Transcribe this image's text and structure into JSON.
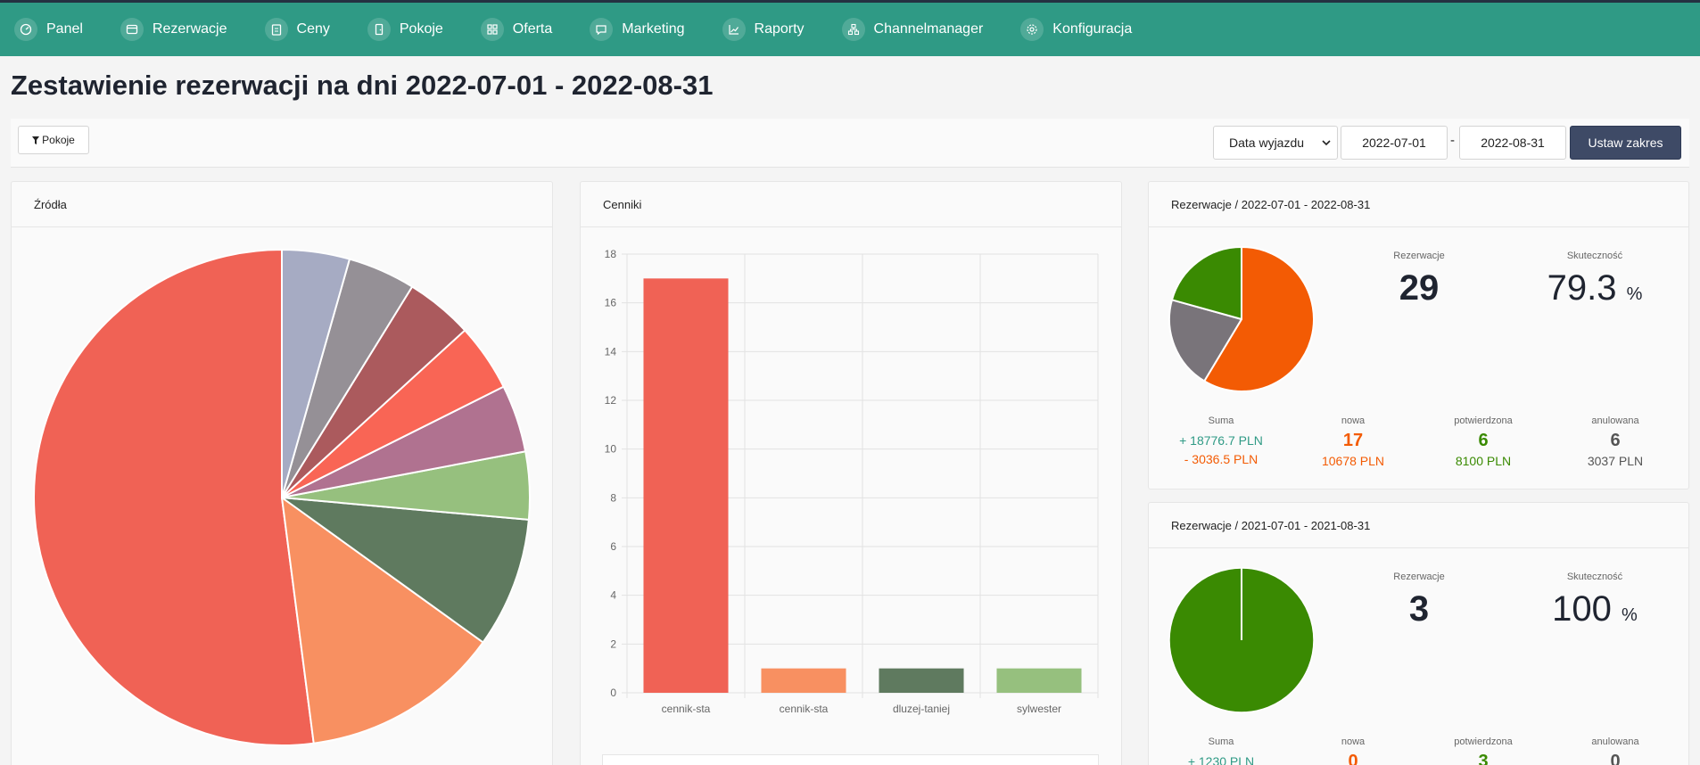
{
  "nav": {
    "items": [
      {
        "label": "Panel",
        "icon": "dashboard-icon"
      },
      {
        "label": "Rezerwacje",
        "icon": "calendar-card-icon"
      },
      {
        "label": "Ceny",
        "icon": "clipboard-icon"
      },
      {
        "label": "Pokoje",
        "icon": "door-icon"
      },
      {
        "label": "Oferta",
        "icon": "grid-icon"
      },
      {
        "label": "Marketing",
        "icon": "message-icon"
      },
      {
        "label": "Raporty",
        "icon": "chart-line-icon"
      },
      {
        "label": "Channelmanager",
        "icon": "network-icon"
      },
      {
        "label": "Konfiguracja",
        "icon": "gear-icon"
      }
    ]
  },
  "page": {
    "title": "Zestawienie rezerwacji na dni 2022-07-01 - 2022-08-31"
  },
  "toolbar": {
    "filter_label": "Pokoje",
    "date_type": "Data wyjazdu",
    "date_from": "2022-07-01",
    "date_separator": "-",
    "date_to": "2022-08-31",
    "apply_label": "Ustaw zakres"
  },
  "colors": {
    "nav_bg": "#2f9a85",
    "nowa": "#f35b04",
    "potwierdzona": "#3a8a02",
    "anulowana": "#555555",
    "suma_plus": "#2f9a85",
    "suma_minus": "#f35b04"
  },
  "sources_card": {
    "title": "Źródła"
  },
  "pricing_card": {
    "title": "Cenniki"
  },
  "res_current": {
    "title": "Rezerwacje / 2022-07-01 - 2022-08-31",
    "count_label": "Rezerwacje",
    "count": "29",
    "eff_label": "Skuteczność",
    "eff_value": "79.3",
    "eff_unit": "%",
    "sum_label": "Suma",
    "sum_plus": "+ 18776.7 PLN",
    "sum_minus": "- 3036.5 PLN",
    "new_label": "nowa",
    "new_count": "17",
    "new_amount": "10678 PLN",
    "confirmed_label": "potwierdzona",
    "confirmed_count": "6",
    "confirmed_amount": "8100 PLN",
    "cancelled_label": "anulowana",
    "cancelled_count": "6",
    "cancelled_amount": "3037 PLN"
  },
  "res_previous": {
    "title": "Rezerwacje / 2021-07-01 - 2021-08-31",
    "count_label": "Rezerwacje",
    "count": "3",
    "eff_label": "Skuteczność",
    "eff_value": "100",
    "eff_unit": "%",
    "sum_label": "Suma",
    "sum_plus": "+ 1230 PLN",
    "new_label": "nowa",
    "new_count": "0",
    "confirmed_label": "potwierdzona",
    "confirmed_count": "3",
    "cancelled_label": "anulowana",
    "cancelled_count": "0"
  },
  "chart_data": [
    {
      "type": "pie",
      "title": "Źródła",
      "values": [
        52,
        13,
        8.5,
        4.4,
        4.4,
        4.4,
        4.4,
        4.4,
        4.4
      ],
      "colors": [
        "#f06255",
        "#f89061",
        "#5f7a5f",
        "#96c07e",
        "#b07290",
        "#f96555",
        "#ab5a5d",
        "#959096",
        "#a6abc3"
      ]
    },
    {
      "type": "bar",
      "title": "Cenniki",
      "categories": [
        "cennik-sta",
        "cennik-sta",
        "dluzej-taniej",
        "sylwester"
      ],
      "values": [
        17,
        1,
        1,
        1
      ],
      "colors": [
        "#f06255",
        "#f89061",
        "#5f7a5f",
        "#96c07e"
      ],
      "ylim": [
        0,
        18
      ],
      "yticks": [
        0,
        2,
        4,
        6,
        8,
        10,
        12,
        14,
        16,
        18
      ]
    },
    {
      "type": "pie",
      "title": "Rezerwacje / 2022-07-01 - 2022-08-31",
      "labels": [
        "nowa",
        "anulowana",
        "potwierdzona"
      ],
      "values": [
        17,
        6,
        6
      ],
      "colors": [
        "#f35b04",
        "#79747a",
        "#3a8a02"
      ]
    },
    {
      "type": "pie",
      "title": "Rezerwacje / 2021-07-01 - 2021-08-31",
      "labels": [
        "potwierdzona"
      ],
      "values": [
        3
      ],
      "colors": [
        "#3a8a02"
      ]
    }
  ]
}
